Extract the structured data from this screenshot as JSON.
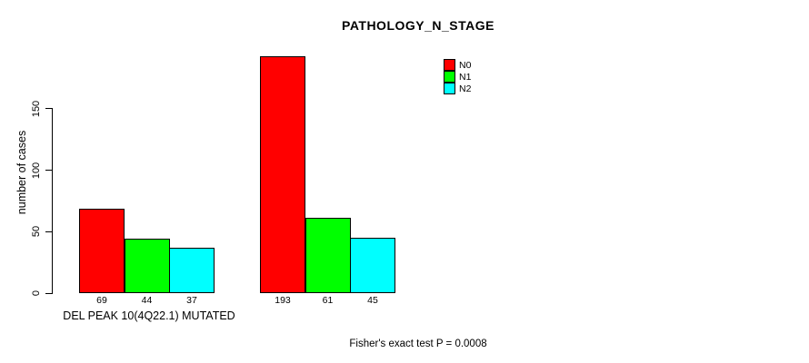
{
  "footnote": "Fisher's exact test P = 0.0008",
  "chart_data": {
    "type": "bar",
    "title": "PATHOLOGY_N_STAGE",
    "xlabel": "",
    "ylabel": "number of cases",
    "yticks": [
      0,
      50,
      100,
      150
    ],
    "ylim": [
      0,
      150
    ],
    "grid": false,
    "legend_position": "top-right",
    "bar_value_labels": true,
    "categories": [
      "DEL PEAK 10(4Q22.1) MUTATED",
      ""
    ],
    "series": [
      {
        "name": "N0",
        "color": "#ff0000",
        "values": [
          69,
          193
        ]
      },
      {
        "name": "N1",
        "color": "#00ff00",
        "values": [
          44,
          61
        ]
      },
      {
        "name": "N2",
        "color": "#00ffff",
        "values": [
          37,
          45
        ]
      }
    ]
  }
}
